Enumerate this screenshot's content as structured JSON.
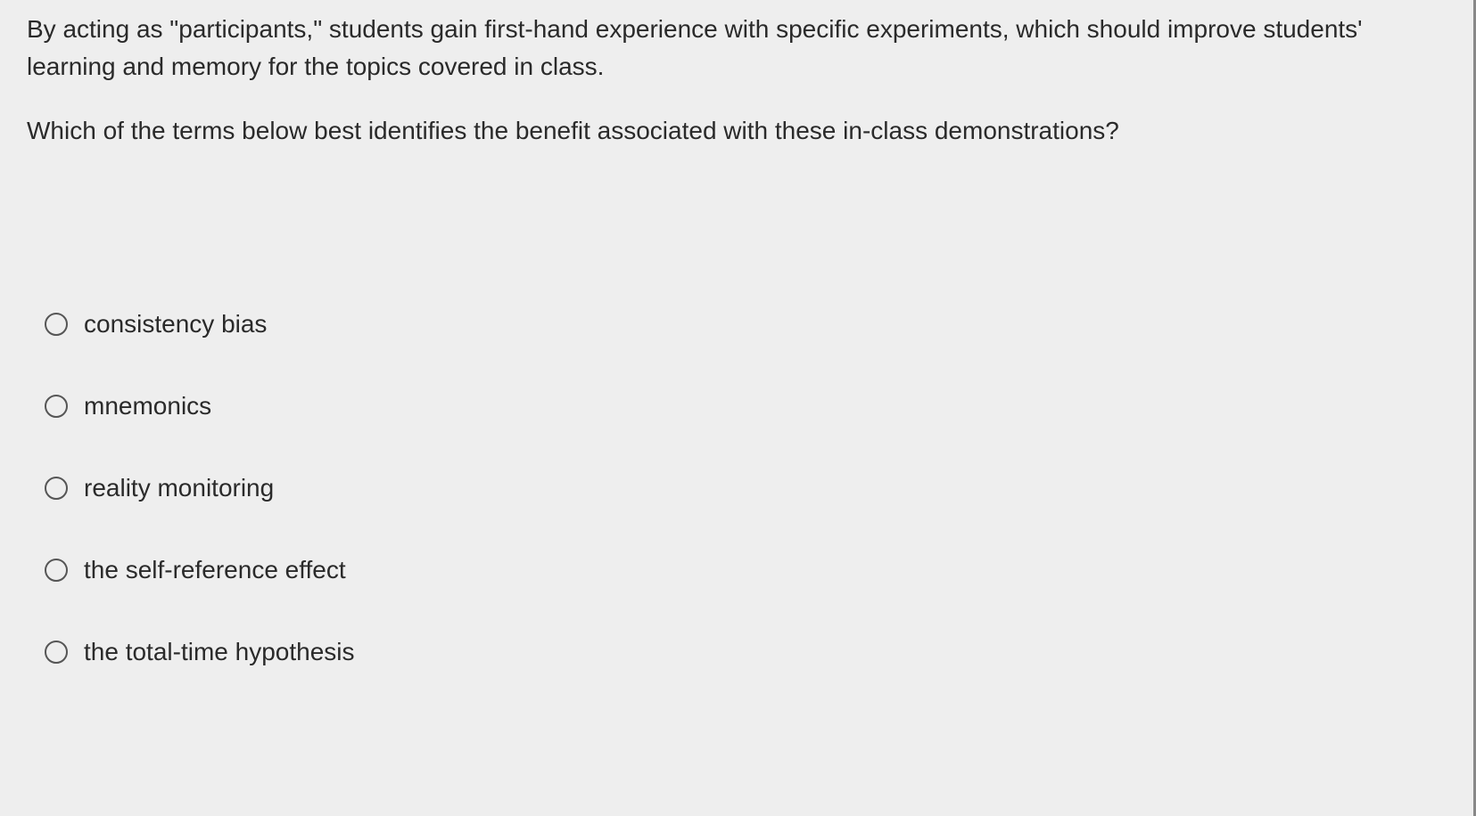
{
  "question": {
    "context": "By acting as \"participants,\" students gain first-hand experience with specific experiments, which should improve students' learning and memory for the topics covered in class.",
    "prompt": "Which of the terms below best identifies the benefit associated with these in-class demonstrations?"
  },
  "options": [
    {
      "label": "consistency bias"
    },
    {
      "label": "mnemonics"
    },
    {
      "label": "reality monitoring"
    },
    {
      "label": "the self-reference effect"
    },
    {
      "label": "the total-time hypothesis"
    }
  ],
  "colors": {
    "background": "#eeeeee",
    "text": "#2a2a2a",
    "radio_border": "#555"
  }
}
